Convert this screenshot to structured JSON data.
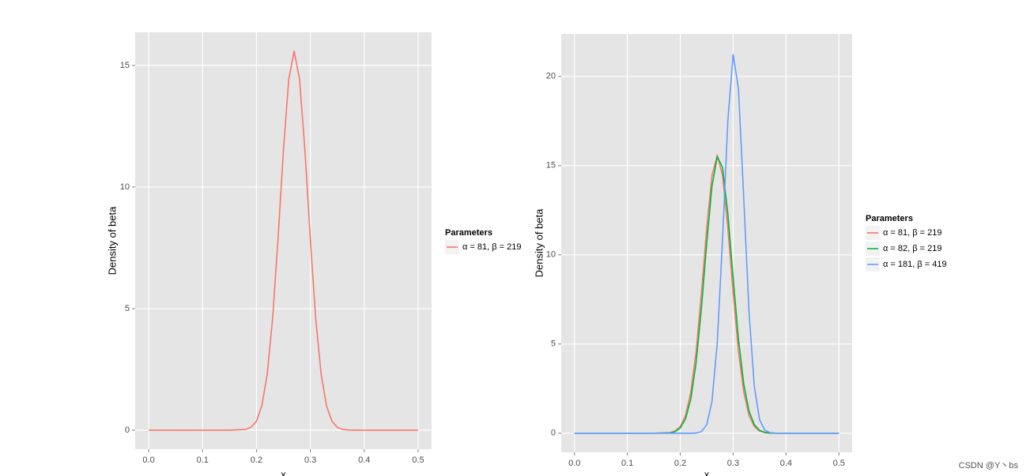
{
  "chart_data": [
    {
      "type": "line",
      "xlabel": "x",
      "ylabel": "Density of beta",
      "legend_title": "Parameters",
      "legend": "right",
      "grid": true,
      "xlim": [
        -0.025,
        0.525
      ],
      "ylim": [
        -0.78,
        16.36
      ],
      "xticks": [
        {
          "value": 0,
          "label": "0.0"
        },
        {
          "value": 0.1,
          "label": "0.1"
        },
        {
          "value": 0.2,
          "label": "0.2"
        },
        {
          "value": 0.3,
          "label": "0.3"
        },
        {
          "value": 0.4,
          "label": "0.4"
        },
        {
          "value": 0.5,
          "label": "0.5"
        }
      ],
      "yticks": [
        0,
        5,
        10,
        15
      ],
      "x": [
        0,
        0.1,
        0.15,
        0.18,
        0.19,
        0.2,
        0.21,
        0.22,
        0.23,
        0.24,
        0.25,
        0.26,
        0.27,
        0.28,
        0.29,
        0.3,
        0.31,
        0.32,
        0.33,
        0.34,
        0.35,
        0.36,
        0.37,
        0.38,
        0.4,
        0.45,
        0.5
      ],
      "series": [
        {
          "name": "α = 81, β = 219",
          "color": "#f8766d",
          "values": [
            0,
            0,
            0,
            0.03,
            0.12,
            0.37,
            1.0,
            2.31,
            4.59,
            7.84,
            11.49,
            14.44,
            15.59,
            14.44,
            11.49,
            7.84,
            4.59,
            2.31,
            1.0,
            0.37,
            0.12,
            0.03,
            0.01,
            0,
            0,
            0,
            0
          ]
        }
      ]
    },
    {
      "type": "line",
      "xlabel": "x",
      "ylabel": "Density of beta",
      "legend_title": "Parameters",
      "legend": "right",
      "grid": true,
      "xlim": [
        -0.025,
        0.525
      ],
      "ylim": [
        -1.07,
        22.38
      ],
      "xticks": [
        {
          "value": 0,
          "label": "0.0"
        },
        {
          "value": 0.1,
          "label": "0.1"
        },
        {
          "value": 0.2,
          "label": "0.2"
        },
        {
          "value": 0.3,
          "label": "0.3"
        },
        {
          "value": 0.4,
          "label": "0.4"
        },
        {
          "value": 0.5,
          "label": "0.5"
        }
      ],
      "yticks": [
        0,
        5,
        10,
        15,
        20
      ],
      "x": [
        0,
        0.1,
        0.15,
        0.18,
        0.19,
        0.2,
        0.21,
        0.22,
        0.23,
        0.24,
        0.25,
        0.26,
        0.27,
        0.28,
        0.29,
        0.3,
        0.31,
        0.32,
        0.33,
        0.34,
        0.35,
        0.36,
        0.37,
        0.38,
        0.4,
        0.45,
        0.5
      ],
      "series": [
        {
          "name": "α = 81, β = 219",
          "color": "#f8766d",
          "values": [
            0,
            0,
            0,
            0.03,
            0.12,
            0.37,
            1.0,
            2.31,
            4.59,
            7.84,
            11.49,
            14.44,
            15.59,
            14.44,
            11.49,
            7.84,
            4.59,
            2.31,
            1.0,
            0.37,
            0.12,
            0.03,
            0.01,
            0,
            0,
            0,
            0
          ]
        },
        {
          "name": "α = 82, β = 219",
          "color": "#00ba38",
          "values": [
            0,
            0,
            0,
            0.02,
            0.09,
            0.29,
            0.8,
            1.92,
            3.96,
            7.0,
            10.63,
            13.85,
            15.5,
            14.9,
            12.3,
            8.72,
            5.3,
            2.77,
            1.24,
            0.48,
            0.16,
            0.05,
            0.01,
            0,
            0,
            0,
            0
          ]
        },
        {
          "name": "α = 181, β = 419",
          "color": "#619cff",
          "values": [
            0,
            0,
            0,
            0,
            0,
            0,
            0,
            0,
            0.01,
            0.09,
            0.47,
            1.78,
            5.08,
            10.88,
            17.53,
            21.22,
            19.32,
            13.21,
            6.8,
            2.63,
            0.76,
            0.17,
            0.03,
            0,
            0,
            0,
            0
          ]
        }
      ]
    }
  ],
  "watermark": "CSDN @Y丶bs"
}
